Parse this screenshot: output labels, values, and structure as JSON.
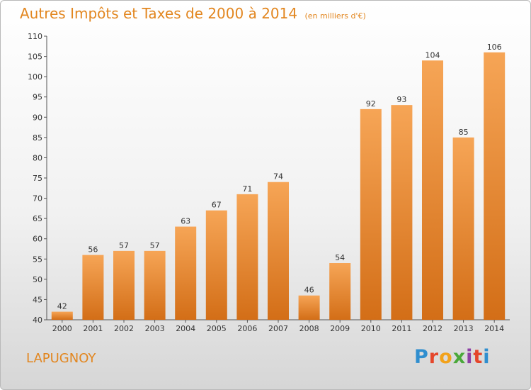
{
  "title": {
    "main": "Autres Impôts et Taxes de 2000 à 2014",
    "unit": "(en milliers d'€)"
  },
  "city": "LAPUGNOY",
  "logo": {
    "text": "Proxiti",
    "letters": [
      "P",
      "r",
      "o",
      "x",
      "i",
      "t",
      "i"
    ]
  },
  "colors": {
    "accent": "#e2861f",
    "bar_top": "#f6a556",
    "bar_bottom": "#d36e17",
    "axis": "#555555",
    "text": "#333333"
  },
  "chart_data": {
    "type": "bar",
    "categories": [
      "2000",
      "2001",
      "2002",
      "2003",
      "2004",
      "2005",
      "2006",
      "2007",
      "2008",
      "2009",
      "2010",
      "2011",
      "2012",
      "2013",
      "2014"
    ],
    "values": [
      42,
      56,
      57,
      57,
      63,
      67,
      71,
      74,
      46,
      54,
      92,
      93,
      104,
      85,
      106
    ],
    "ylim": [
      40,
      110
    ],
    "yticks": [
      40,
      45,
      50,
      55,
      60,
      65,
      70,
      75,
      80,
      85,
      90,
      95,
      100,
      105,
      110
    ],
    "grid": false,
    "data_labels": true
  }
}
